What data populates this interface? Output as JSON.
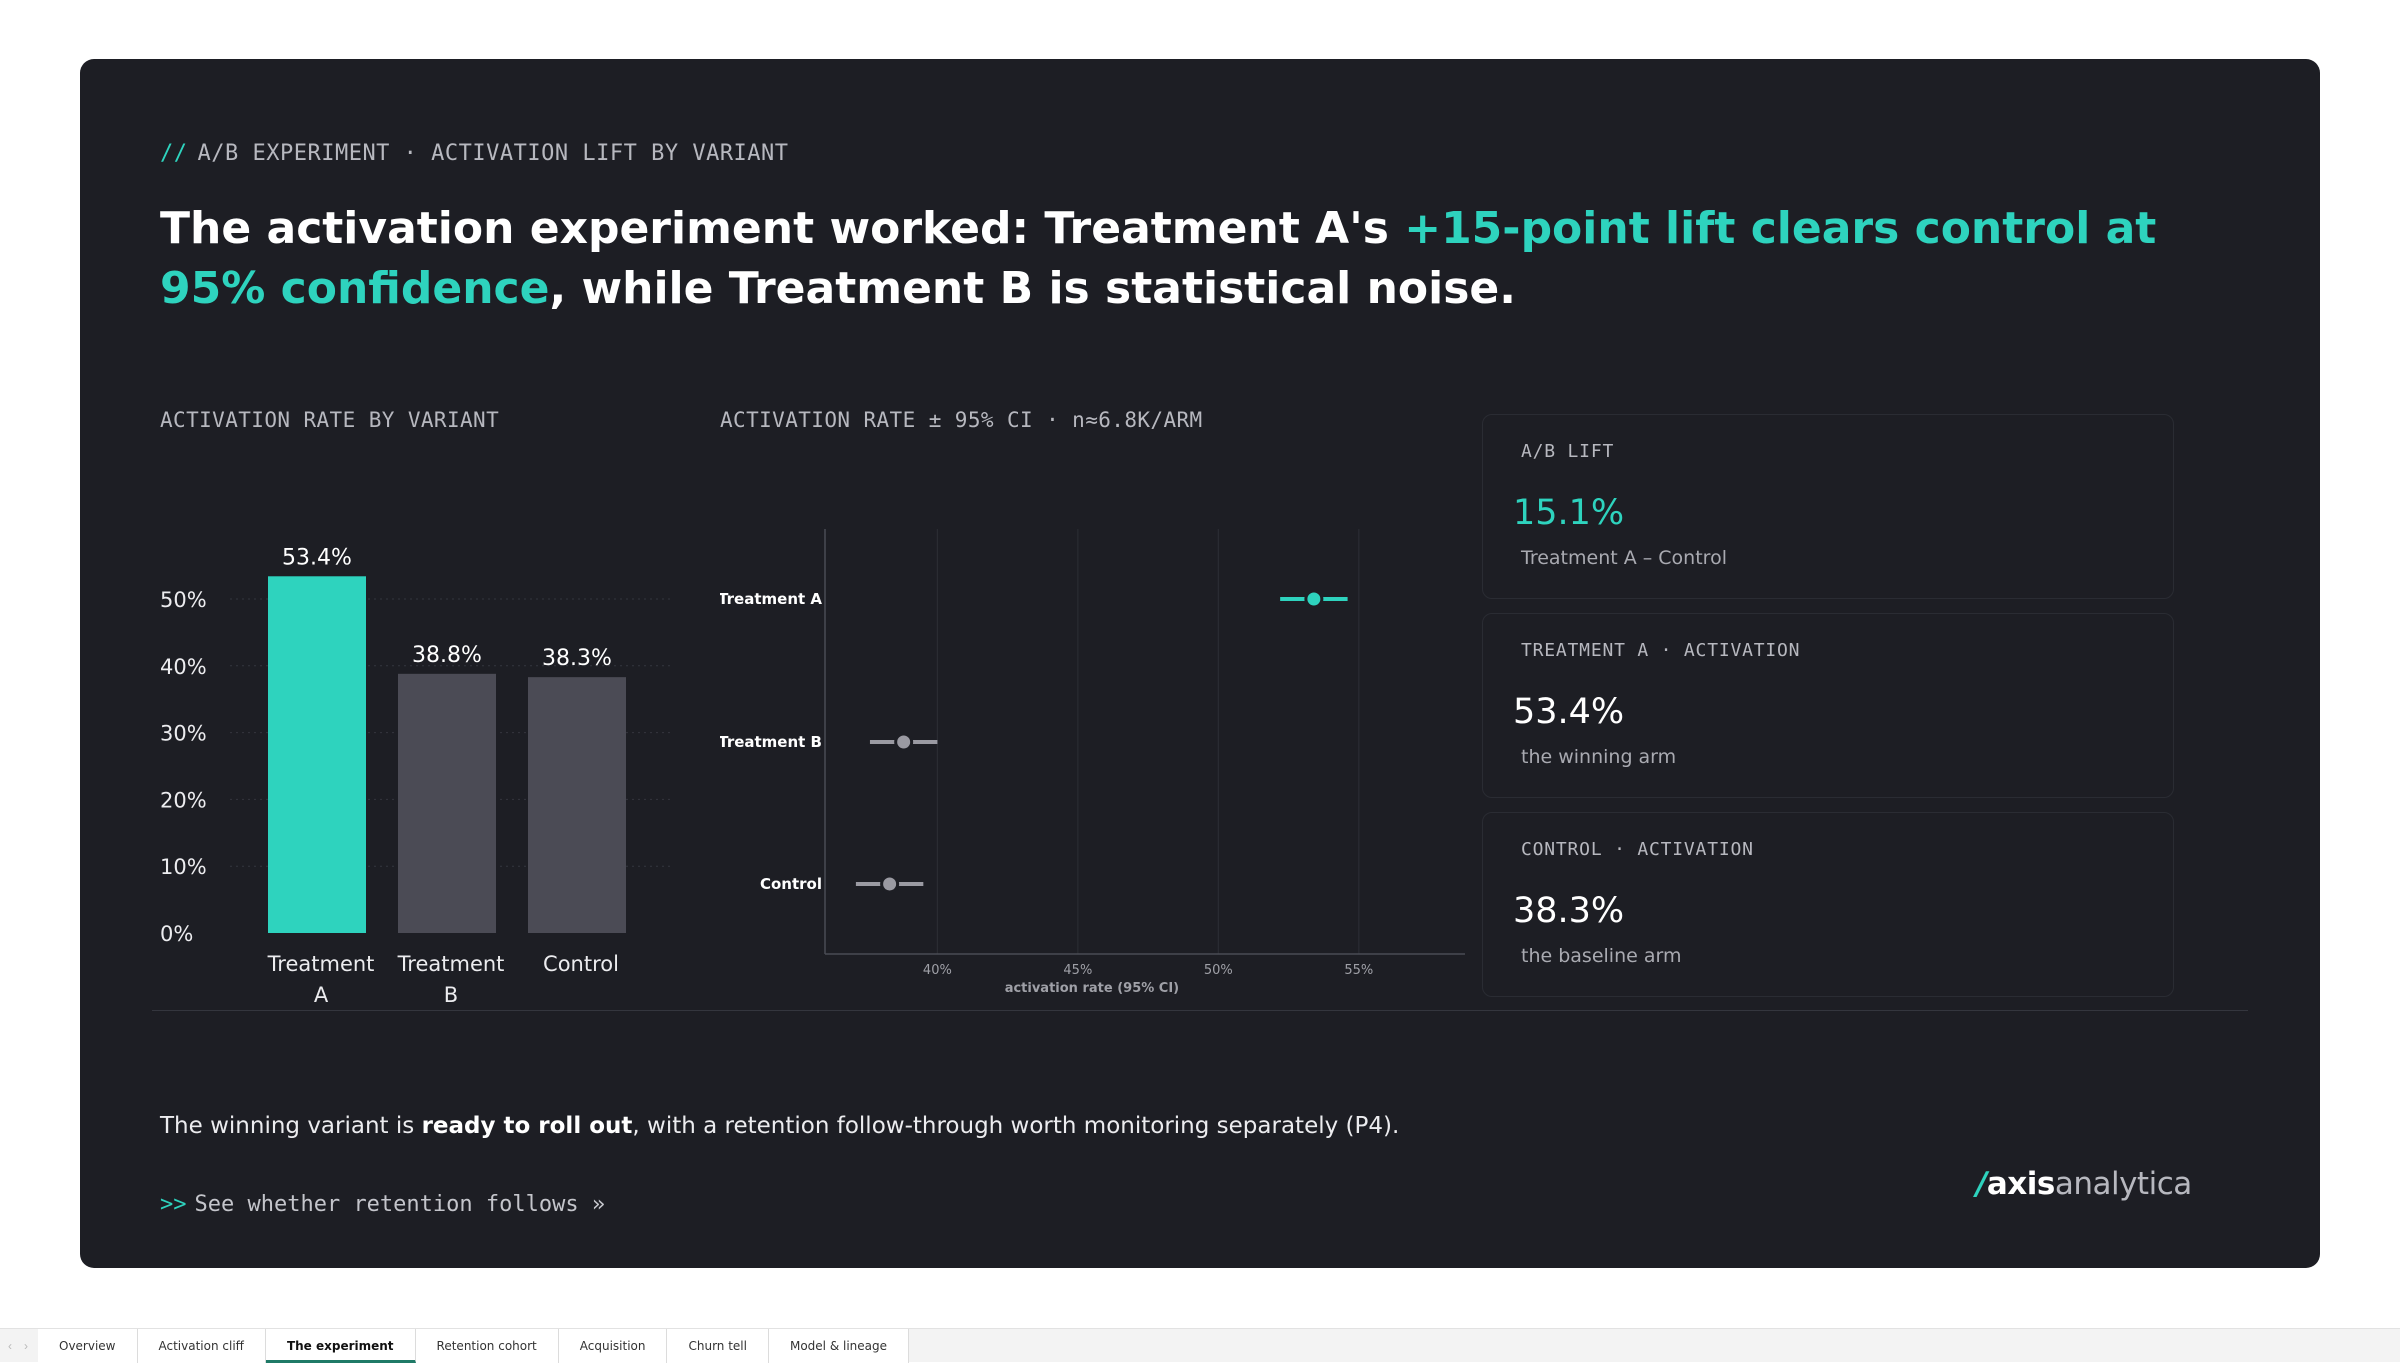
{
  "header": {
    "eyebrow_prefix": "//",
    "eyebrow": "A/B EXPERIMENT · ACTIVATION LIFT BY VARIANT",
    "headline_part1": "The activation experiment worked: Treatment A's ",
    "headline_accent": "+15-point lift clears control at 95% confidence",
    "headline_part2": ", while Treatment B is statistical noise."
  },
  "colors": {
    "accent": "#2ed3be",
    "muted_bar": "#4b4b55",
    "background": "#1d1e24"
  },
  "chart_data": [
    {
      "type": "bar",
      "title": "ACTIVATION RATE BY VARIANT",
      "categories": [
        [
          "Treatment",
          "A"
        ],
        [
          "Treatment",
          "B"
        ],
        [
          "Control"
        ]
      ],
      "values": [
        53.4,
        38.8,
        38.3
      ],
      "value_labels": [
        "53.4%",
        "38.8%",
        "38.3%"
      ],
      "highlight_index": 0,
      "yticks": [
        "0%",
        "10%",
        "20%",
        "30%",
        "40%",
        "50%"
      ],
      "ylim": [
        0,
        55
      ]
    },
    {
      "type": "scatter",
      "title": "ACTIVATION RATE ± 95% CI · n≈6.8K/ARM",
      "categories": [
        "Treatment A",
        "Treatment B",
        "Control"
      ],
      "values": [
        53.4,
        38.8,
        38.3
      ],
      "ci_low": [
        52.2,
        37.6,
        37.1
      ],
      "ci_high": [
        54.6,
        40.0,
        39.5
      ],
      "xticks": [
        40,
        45,
        50,
        55
      ],
      "xtick_labels": [
        "40%",
        "45%",
        "50%",
        "55%"
      ],
      "xlim": [
        36.0,
        56.0
      ],
      "xlabel": "activation rate (95% CI)"
    }
  ],
  "cards": [
    {
      "label": "A/B LIFT",
      "value": "15.1%",
      "note": "Treatment A – Control"
    },
    {
      "label": "TREATMENT A · ACTIVATION",
      "value": "53.4%",
      "note": "the winning arm"
    },
    {
      "label": "CONTROL · ACTIVATION",
      "value": "38.3%",
      "note": "the baseline arm"
    }
  ],
  "footer": {
    "text_part1": "The winning variant is ",
    "text_bold": "ready to roll out",
    "text_part2": ", with a retention follow-through worth monitoring separately (P4).",
    "cta_prefix": ">>",
    "cta": "See whether retention follows »"
  },
  "logo": {
    "slash": "/",
    "part1": "axis",
    "part2": "analytica"
  },
  "tabs": [
    "Overview",
    "Activation cliff",
    "The experiment",
    "Retention cohort",
    "Acquisition",
    "Churn tell",
    "Model & lineage"
  ],
  "active_tab": "The experiment",
  "tab_nav": {
    "prev": "‹",
    "next": "›"
  }
}
